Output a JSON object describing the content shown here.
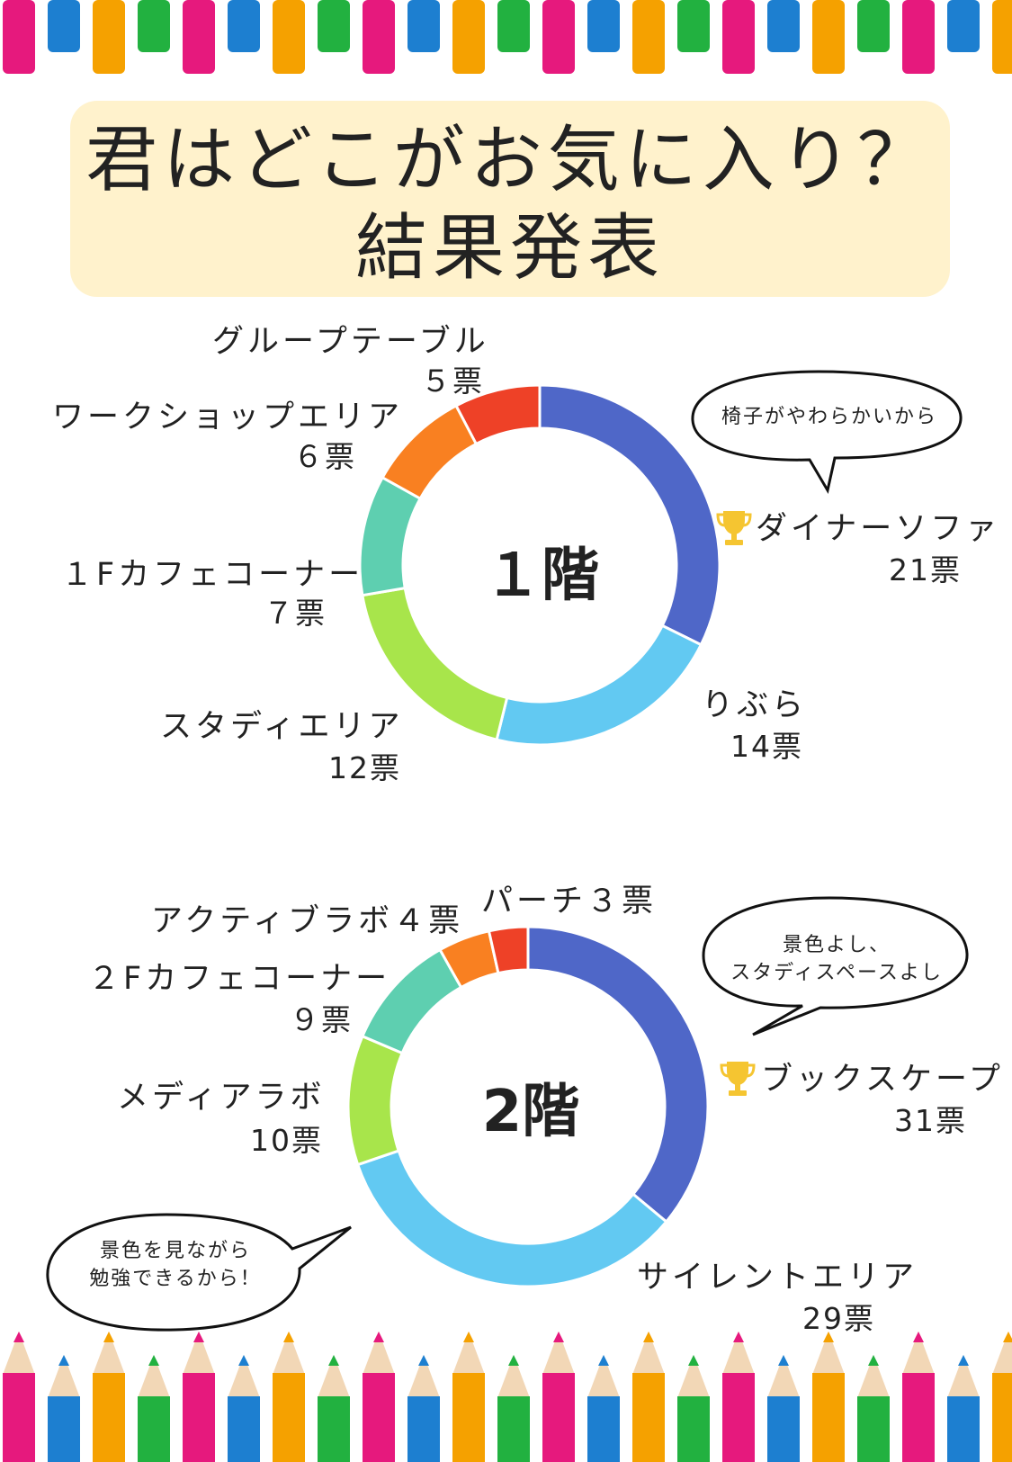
{
  "title": {
    "line1": "君はどこがお気に入り？",
    "line2": "結果発表"
  },
  "colors": {
    "blue": "#4f67c8",
    "light_blue": "#62c9f2",
    "green": "#a8e54b",
    "teal": "#5ecfb0",
    "orange": "#f98021",
    "red": "#ee4127",
    "title_bg": "#fff2cc",
    "trophy": "#f5c531"
  },
  "floor1": {
    "center_label": "１階",
    "comment": "椅子がやわらかいから",
    "labels": {
      "sofa": "ダイナーソファ",
      "sofa_votes": "21票",
      "libra": "りぶら",
      "libra_votes": "14票",
      "study": "スタディエリア",
      "study_votes": "12票",
      "cafe": "１Fカフェコーナー",
      "cafe_votes": "７票",
      "workshop": "ワークショップエリア",
      "workshop_votes": "６票",
      "group": "グループテーブル",
      "group_votes": "５票"
    }
  },
  "floor2": {
    "center_label": "2階",
    "comment_line1": "景色よし、",
    "comment_line2": "スタディスペースよし",
    "comment2_line1": "景色を見ながら",
    "comment2_line2": "勉強できるから！",
    "labels": {
      "bookscape": "ブックスケープ",
      "bookscape_votes": "31票",
      "silent": "サイレントエリア",
      "silent_votes": "29票",
      "media": "メディアラボ",
      "media_votes": "10票",
      "cafe": "２Fカフェコーナー",
      "cafe_votes": "９票",
      "active": "アクティブラボ４票",
      "porch": "パーチ３票"
    }
  },
  "chart_data": [
    {
      "type": "pie",
      "title": "１階",
      "categories": [
        "ダイナーソファ",
        "りぶら",
        "スタディエリア",
        "１Fカフェコーナー",
        "ワークショップエリア",
        "グループテーブル"
      ],
      "values": [
        21,
        14,
        12,
        7,
        6,
        5
      ],
      "unit": "票"
    },
    {
      "type": "pie",
      "title": "2階",
      "categories": [
        "ブックスケープ",
        "サイレントエリア",
        "メディアラボ",
        "２Fカフェコーナー",
        "アクティブラボ",
        "パーチ"
      ],
      "values": [
        31,
        29,
        10,
        9,
        4,
        3
      ],
      "unit": "票"
    }
  ]
}
